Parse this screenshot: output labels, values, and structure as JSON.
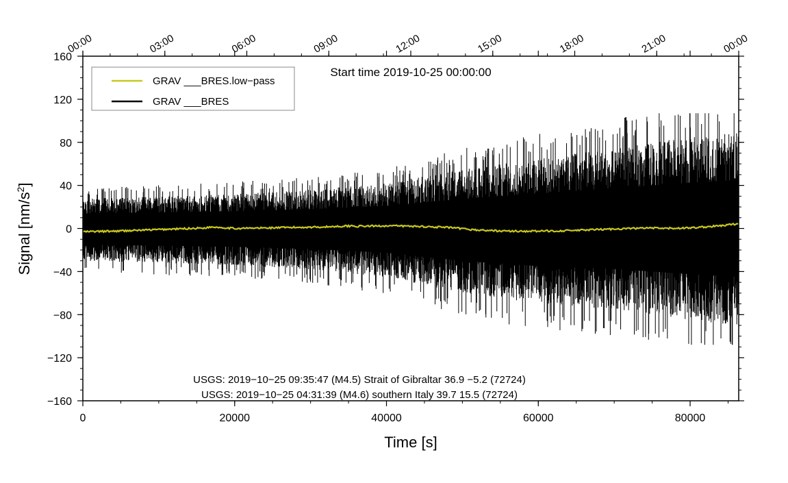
{
  "chart_data": {
    "type": "line",
    "start_time_text": "Start time 2019-10-25 00:00:00",
    "xlabel": "Time [s]",
    "ylabel": "Signal [nm/s",
    "ylabel_sup": "2",
    "ylabel_close": "]",
    "xlim": [
      0,
      86400
    ],
    "ylim": [
      -160,
      160
    ],
    "x_ticks": [
      0,
      20000,
      40000,
      60000,
      80000
    ],
    "x_tick_labels": [
      "0",
      "20000",
      "40000",
      "60000",
      "80000"
    ],
    "y_ticks": [
      -160,
      -120,
      -80,
      -40,
      0,
      40,
      80,
      120,
      160
    ],
    "y_tick_labels": [
      "−160",
      "−120",
      "−80",
      "−40",
      "0",
      "40",
      "80",
      "120",
      "160"
    ],
    "top_axis_ticks": [
      0,
      10800,
      21600,
      32400,
      43200,
      54000,
      64800,
      75600,
      86400
    ],
    "top_axis_labels": [
      "00:00",
      "03:00",
      "06:00",
      "09:00",
      "12:00",
      "15:00",
      "18:00",
      "21:00",
      "00:00"
    ],
    "grid": false,
    "legend_position": "top-left",
    "series": [
      {
        "name": "GRAV ___BRES.low−pass",
        "color": "#c8c81e",
        "x": [
          0,
          4000,
          8000,
          12000,
          16000,
          17100,
          20000,
          24000,
          28000,
          32000,
          35600,
          36000,
          40000,
          44000,
          48000,
          52000,
          56000,
          60000,
          64000,
          68000,
          72000,
          74800,
          76000,
          80000,
          84000,
          86400
        ],
        "values": [
          -3,
          -2.5,
          -1.5,
          -0.5,
          0.5,
          1.5,
          0,
          0.5,
          1,
          1.5,
          2.5,
          2,
          2.5,
          2,
          1,
          -1.5,
          -2.5,
          -2.5,
          -2,
          -1,
          0,
          0.5,
          0,
          0.5,
          2.5,
          4.5
        ]
      },
      {
        "name": "GRAV ___BRES",
        "color": "#000000",
        "x": [
          0,
          10000,
          20000,
          30000,
          40000,
          50000,
          60000,
          70000,
          80000,
          86400
        ],
        "upper_envelope": [
          28,
          30,
          32,
          36,
          42,
          55,
          65,
          75,
          85,
          90
        ],
        "lower_envelope": [
          -30,
          -32,
          -34,
          -38,
          -45,
          -60,
          -70,
          -75,
          -85,
          -90
        ],
        "max": 107,
        "min": -108
      }
    ],
    "annotations": [
      "USGS: 2019−10−25 09:35:47 (M4.5) Strait of Gibraltar 36.9 −5.2 (72724)",
      "USGS: 2019−10−25 04:31:39 (M4.6) southern Italy 39.7 15.5 (72724)"
    ]
  }
}
